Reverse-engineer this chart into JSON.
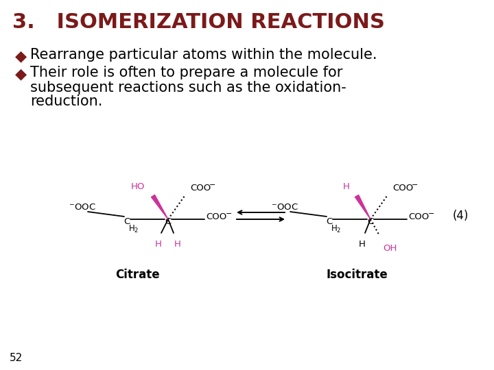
{
  "background_color": "#ffffff",
  "title": "3.   ISOMERIZATION REACTIONS",
  "title_color": "#7B1A1A",
  "title_fontsize": 22,
  "bullet_color": "#7B1A1A",
  "bullet1": "Rearrange particular atoms within the molecule.",
  "bullet2_line1": "Their role is often to prepare a molecule for",
  "bullet2_line2": "subsequent reactions such as the oxidation-",
  "bullet2_line3": "reduction.",
  "bullet_fontsize": 15,
  "text_color": "#000000",
  "page_number": "52",
  "reaction_number": "(4)",
  "citrate_label": "Citrate",
  "isocitrate_label": "Isocitrate",
  "pink_color": "#CC3399",
  "black_color": "#000000"
}
